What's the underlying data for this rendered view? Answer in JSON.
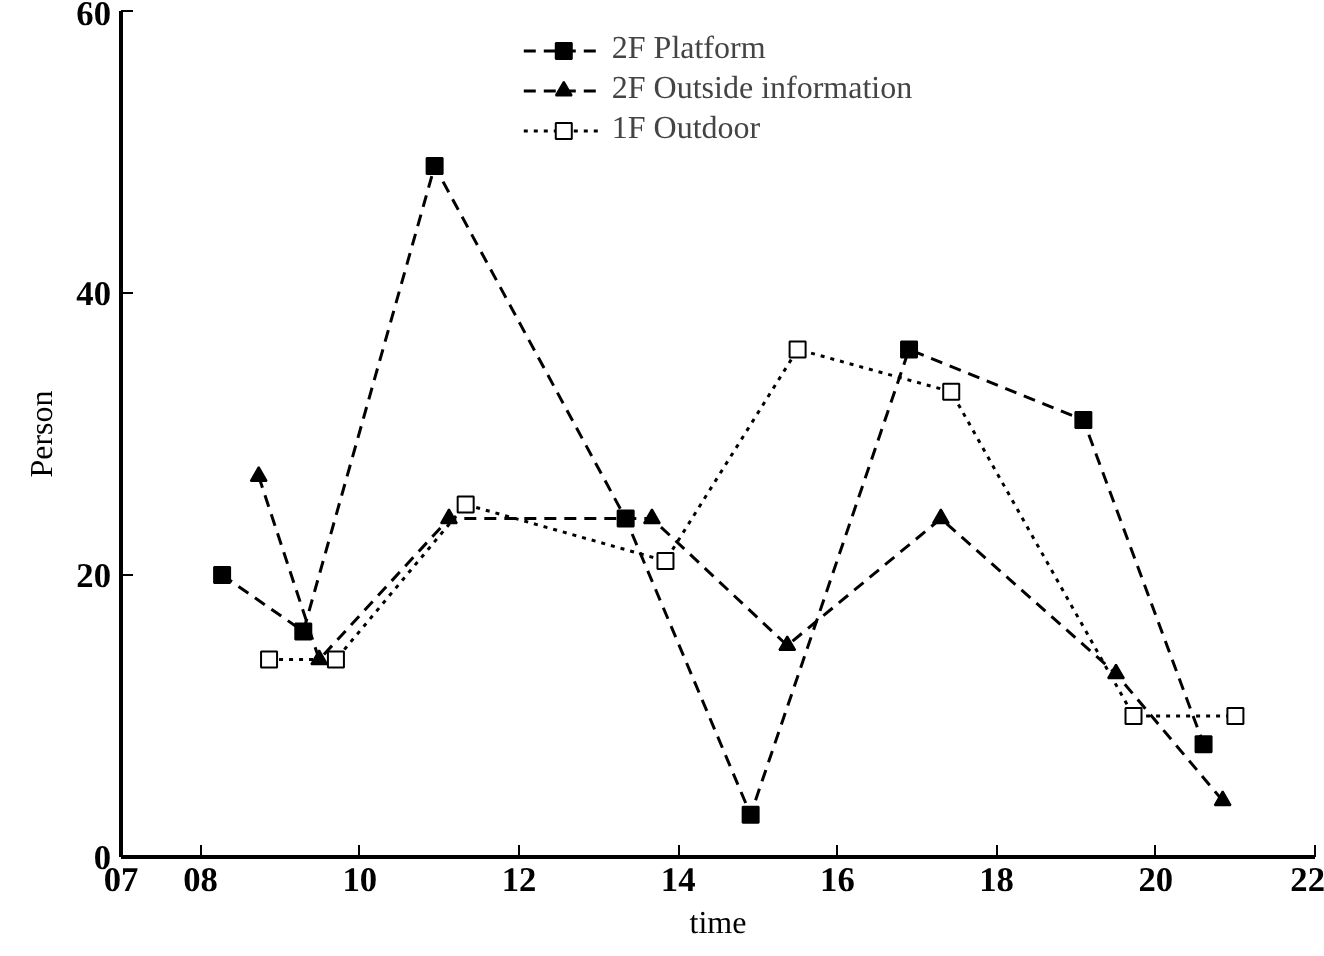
{
  "chart_data": {
    "type": "line",
    "xlabel": "time",
    "ylabel": "Person",
    "xlim": [
      7,
      22
    ],
    "ylim": [
      0,
      60
    ],
    "xticks": [
      {
        "value": 7,
        "label": "07"
      },
      {
        "value": 8,
        "label": "08"
      },
      10,
      12,
      14,
      16,
      18,
      20,
      22
    ],
    "yticks": [
      0,
      20,
      40,
      60
    ],
    "grid": false,
    "legend": "top",
    "series": [
      {
        "name": "2F Platform",
        "color": "#000000",
        "marker": "square",
        "line_style": "dashed",
        "x": [
          8.27,
          9.29,
          10.94,
          13.34,
          14.91,
          16.9,
          19.09,
          20.6
        ],
        "values": [
          20,
          16,
          49,
          24,
          3,
          36,
          31,
          8
        ]
      },
      {
        "name": "2F Outside information",
        "color": "#000000",
        "marker": "triangle",
        "line_style": "dashed",
        "x": [
          8.73,
          9.49,
          11.12,
          13.67,
          15.37,
          17.3,
          19.5,
          20.84
        ],
        "values": [
          27,
          14,
          24,
          24,
          15,
          24,
          13,
          4
        ]
      },
      {
        "name": "1F Outdoor",
        "color": "#000000",
        "marker": "square",
        "line_style": "dotted",
        "x": [
          8.86,
          9.7,
          11.33,
          13.84,
          15.5,
          17.43,
          19.72,
          21.0
        ],
        "values": [
          14,
          14,
          25,
          21,
          36,
          33,
          10,
          10
        ]
      }
    ]
  }
}
